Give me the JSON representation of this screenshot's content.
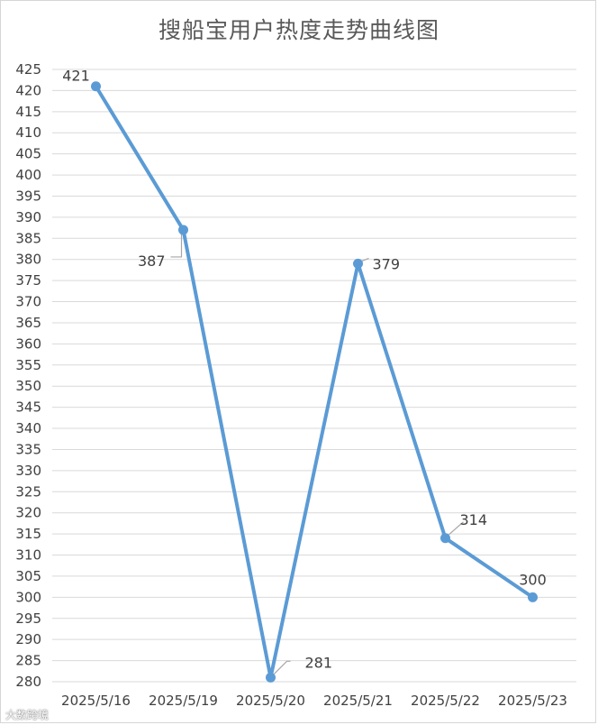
{
  "chart_data": {
    "type": "line",
    "title": "搜船宝用户热度走势曲线图",
    "xlabel": "",
    "ylabel": "",
    "categories": [
      "2025/5/16",
      "2025/5/19",
      "2025/5/20",
      "2025/5/21",
      "2025/5/22",
      "2025/5/23"
    ],
    "series": [
      {
        "values": [
          421,
          387,
          281,
          379,
          314,
          300
        ]
      }
    ],
    "ylim": [
      280,
      425
    ],
    "ytick_step": 5,
    "grid": true,
    "legend": "none",
    "data_labels": true,
    "line_color": "#5b9bd5",
    "grid_color": "#d9d9d9"
  },
  "watermark": "大数跨境"
}
